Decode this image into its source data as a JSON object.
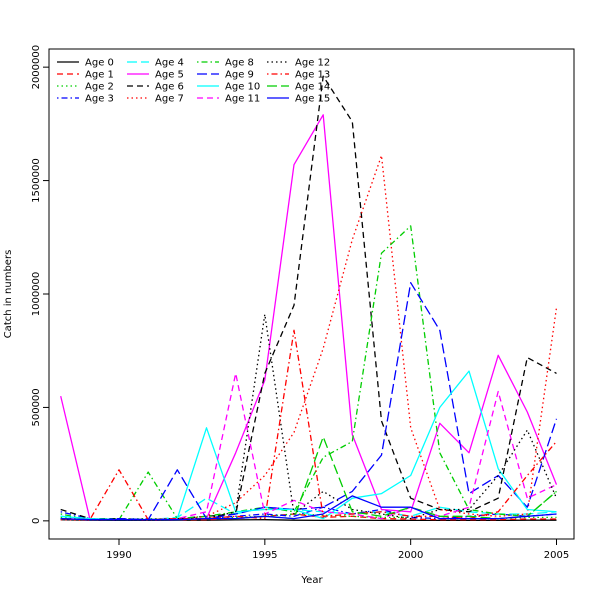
{
  "chart_data": {
    "type": "line",
    "title": "",
    "xlabel": "Year",
    "ylabel": "Catch in numbers",
    "xlim": [
      1987.6,
      2005.6
    ],
    "ylim": [
      -80000,
      2080000
    ],
    "xticks": [
      1990,
      1995,
      2000,
      2005
    ],
    "yticks": [
      0,
      500000,
      1000000,
      1500000,
      2000000
    ],
    "grid": false,
    "legend_position": "top-left",
    "x": [
      1988,
      1989,
      1990,
      1991,
      1992,
      1993,
      1994,
      1995,
      1996,
      1997,
      1998,
      1999,
      2000,
      2001,
      2002,
      2003,
      2004,
      2005
    ],
    "series": [
      {
        "name": "Age 0",
        "color": "#000000",
        "dash": "solid",
        "values": [
          5000,
          3000,
          2000,
          2000,
          3000,
          3000,
          4000,
          5000,
          3000,
          2000,
          3000,
          2000,
          2000,
          2000,
          2000,
          2000,
          3000,
          3000
        ]
      },
      {
        "name": "Age 1",
        "color": "#ff0000",
        "dash": "dashed",
        "values": [
          8000,
          5000,
          5000,
          4000,
          5000,
          5000,
          10000,
          20000,
          30000,
          15000,
          20000,
          10000,
          8000,
          5000,
          5000,
          5000,
          8000,
          8000
        ]
      },
      {
        "name": "Age 2",
        "color": "#00cd00",
        "dash": "dotted",
        "values": [
          15000,
          10000,
          8000,
          10000,
          8000,
          10000,
          15000,
          20000,
          30000,
          25000,
          20000,
          15000,
          15000,
          10000,
          10000,
          10000,
          15000,
          15000
        ]
      },
      {
        "name": "Age 3",
        "color": "#0000ff",
        "dash": "dotdash",
        "values": [
          40000,
          10000,
          5000,
          8000,
          5000,
          10000,
          20000,
          30000,
          20000,
          60000,
          30000,
          50000,
          15000,
          10000,
          20000,
          30000,
          20000,
          30000
        ]
      },
      {
        "name": "Age 4",
        "color": "#00ffff",
        "dash": "longdash",
        "values": [
          20000,
          10000,
          5000,
          5000,
          15000,
          100000,
          30000,
          60000,
          50000,
          40000,
          30000,
          40000,
          20000,
          60000,
          40000,
          30000,
          30000,
          40000
        ]
      },
      {
        "name": "Age 5",
        "color": "#ff00ff",
        "dash": "solid",
        "values": [
          550000,
          10000,
          5000,
          5000,
          5000,
          10000,
          300000,
          620000,
          1570000,
          1790000,
          380000,
          50000,
          40000,
          430000,
          300000,
          730000,
          480000,
          160000
        ]
      },
      {
        "name": "Age 6",
        "color": "#000000",
        "dash": "dashed",
        "values": [
          50000,
          10000,
          10000,
          5000,
          10000,
          20000,
          30000,
          650000,
          950000,
          1960000,
          1760000,
          440000,
          100000,
          50000,
          40000,
          100000,
          720000,
          650000
        ]
      },
      {
        "name": "Age 7",
        "color": "#ff0000",
        "dash": "dotted",
        "values": [
          5000,
          3000,
          5000,
          3000,
          5000,
          20000,
          80000,
          200000,
          390000,
          760000,
          1240000,
          1610000,
          410000,
          50000,
          30000,
          20000,
          30000,
          940000
        ]
      },
      {
        "name": "Age 8",
        "color": "#00cd00",
        "dash": "dotdash",
        "values": [
          30000,
          5000,
          5000,
          215000,
          10000,
          20000,
          40000,
          60000,
          40000,
          280000,
          350000,
          1180000,
          1300000,
          300000,
          50000,
          30000,
          20000,
          130000
        ]
      },
      {
        "name": "Age 9",
        "color": "#0000ff",
        "dash": "longdash",
        "values": [
          10000,
          5000,
          10000,
          5000,
          225000,
          10000,
          30000,
          60000,
          50000,
          60000,
          130000,
          290000,
          1050000,
          840000,
          120000,
          200000,
          60000,
          450000
        ]
      },
      {
        "name": "Age 10",
        "color": "#00ffff",
        "dash": "solid",
        "values": [
          20000,
          10000,
          5000,
          5000,
          10000,
          410000,
          40000,
          50000,
          50000,
          10000,
          100000,
          120000,
          200000,
          500000,
          660000,
          230000,
          50000,
          40000
        ]
      },
      {
        "name": "Age 11",
        "color": "#ff00ff",
        "dash": "dashed",
        "values": [
          10000,
          5000,
          5000,
          5000,
          10000,
          40000,
          650000,
          30000,
          90000,
          40000,
          30000,
          10000,
          60000,
          20000,
          60000,
          570000,
          100000,
          160000
        ]
      },
      {
        "name": "Age 12",
        "color": "#000000",
        "dash": "dotted",
        "values": [
          10000,
          5000,
          5000,
          5000,
          10000,
          10000,
          40000,
          910000,
          30000,
          130000,
          50000,
          30000,
          10000,
          50000,
          50000,
          200000,
          400000,
          100000
        ]
      },
      {
        "name": "Age 13",
        "color": "#ff0000",
        "dash": "dotdash",
        "values": [
          10000,
          5000,
          225000,
          5000,
          10000,
          10000,
          20000,
          10000,
          840000,
          20000,
          30000,
          40000,
          20000,
          20000,
          10000,
          40000,
          200000,
          350000
        ]
      },
      {
        "name": "Age 14",
        "color": "#00cd00",
        "dash": "longdash",
        "values": [
          10000,
          5000,
          5000,
          5000,
          5000,
          10000,
          10000,
          20000,
          10000,
          370000,
          40000,
          20000,
          60000,
          20000,
          20000,
          10000,
          20000,
          130000
        ]
      },
      {
        "name": "Age 15",
        "color": "#0000ff",
        "dash": "solid",
        "values": [
          10000,
          5000,
          5000,
          5000,
          5000,
          10000,
          10000,
          20000,
          10000,
          30000,
          110000,
          60000,
          60000,
          10000,
          10000,
          10000,
          20000,
          30000
        ]
      }
    ]
  }
}
